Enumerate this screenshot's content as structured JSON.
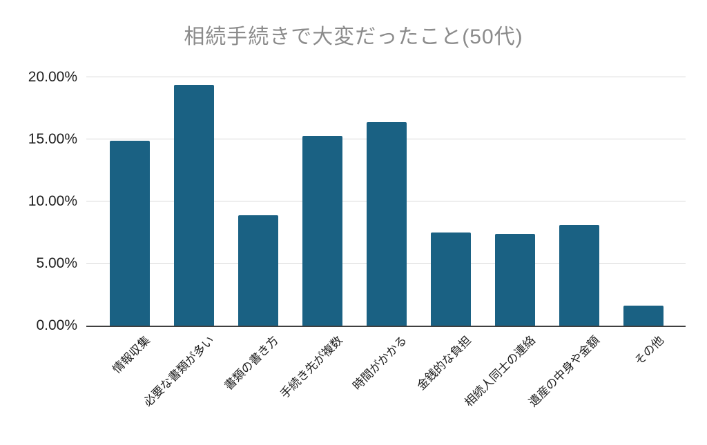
{
  "title": "相続手続きで大変だったこと(50代)",
  "chart_data": {
    "type": "bar",
    "title": "相続手続きで大変だったこと(50代)",
    "categories": [
      "情報収集",
      "必要な書類が多い",
      "書類の書き方",
      "手続き先が複数",
      "時間がかかる",
      "金銭的な負担",
      "相続人同士の連絡",
      "遺産の中身や金額",
      "その他"
    ],
    "values": [
      14.9,
      19.4,
      8.9,
      15.3,
      16.4,
      7.5,
      7.4,
      8.1,
      1.6
    ],
    "unit": "%",
    "xlabel": "",
    "ylabel": "",
    "y_ticks": [
      "20.00%",
      "15.00%",
      "10.00%",
      "5.00%",
      "0.00%"
    ],
    "ylim": [
      0,
      20
    ],
    "grid": true,
    "legend": false,
    "colors": {
      "bar": "#1a6183",
      "title": "#8b8b8b",
      "grid": "#d8d8d8",
      "axis": "#3f3f3f",
      "text": "#1f1f1f"
    }
  }
}
